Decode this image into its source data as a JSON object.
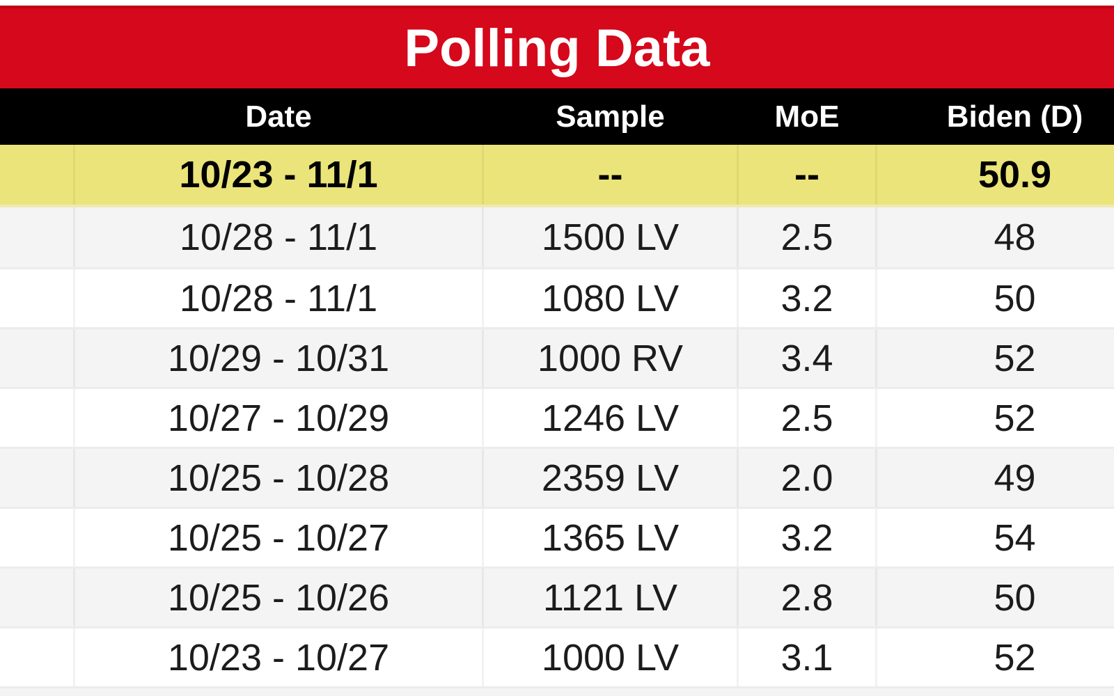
{
  "chart_data": {
    "type": "table",
    "title": "Polling Data",
    "columns": [
      "",
      "Date",
      "Sample",
      "MoE",
      "Biden (D)"
    ],
    "highlight_row_index": 0,
    "rows": [
      [
        "",
        "10/23 - 11/1",
        "--",
        "--",
        "50.9"
      ],
      [
        "",
        "10/28 - 11/1",
        "1500 LV",
        "2.5",
        "48"
      ],
      [
        "",
        "10/28 - 11/1",
        "1080 LV",
        "3.2",
        "50"
      ],
      [
        "",
        "10/29 - 10/31",
        "1000 RV",
        "3.4",
        "52"
      ],
      [
        "",
        "10/27 - 10/29",
        "1246 LV",
        "2.5",
        "52"
      ],
      [
        "",
        "10/25 - 10/28",
        "2359 LV",
        "2.0",
        "49"
      ],
      [
        "",
        "10/25 - 10/27",
        "1365 LV",
        "3.2",
        "54"
      ],
      [
        "",
        "10/25 - 10/26",
        "1121 LV",
        "2.8",
        "50"
      ],
      [
        "",
        "10/23 - 10/27",
        "1000 LV",
        "3.1",
        "52"
      ]
    ],
    "layout": {
      "legend": "none",
      "grid": "light column and row separators",
      "note": "right-most column partially cut off at right edge of screenshot"
    },
    "colors": {
      "title_bar_bg": "#d5081c",
      "title_text": "#ffffff",
      "header_row_bg": "#000000",
      "header_text": "#ffffff",
      "highlight_row_bg": "#ebe47a",
      "row_alt_bg": "#f4f4f4",
      "row_bg": "#ffffff",
      "data_text": "#1c1c1c"
    }
  }
}
